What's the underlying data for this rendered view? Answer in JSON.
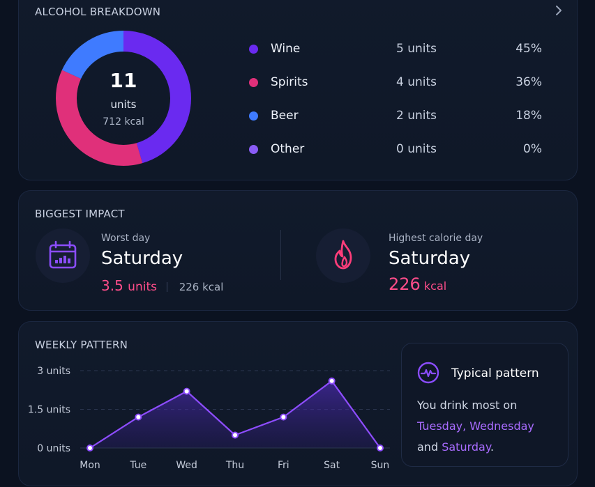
{
  "breakdown": {
    "title": "ALCOHOL BREAKDOWN",
    "chevron_icon": "chevron-right-icon",
    "total_units": "11",
    "units_label": "units",
    "kcal": "712 kcal",
    "items": [
      {
        "name": "Wine",
        "units": "5 units",
        "pct": "45%",
        "color": "#6a2af0",
        "value": 5
      },
      {
        "name": "Spirits",
        "units": "4 units",
        "pct": "36%",
        "color": "#e0307a",
        "value": 4
      },
      {
        "name": "Beer",
        "units": "2 units",
        "pct": "18%",
        "color": "#3f7bff",
        "value": 2
      },
      {
        "name": "Other",
        "units": "0 units",
        "pct": "0%",
        "color": "#8a5cf6",
        "value": 0
      }
    ]
  },
  "impact": {
    "title": "BIGGEST IMPACT",
    "worst": {
      "label": "Worst day",
      "day": "Saturday",
      "units_value": "3.5",
      "units_label": "units",
      "kcal": "226 kcal",
      "icon": "calendar-chart-icon",
      "icon_color": "#8b4dff"
    },
    "highest": {
      "label": "Highest calorie day",
      "day": "Saturday",
      "kcal_value": "226",
      "kcal_label": "kcal",
      "icon": "flame-icon",
      "icon_color": "#ff3d7a"
    }
  },
  "weekly": {
    "title": "WEEKLY PATTERN",
    "typical": {
      "icon": "pulse-icon",
      "title": "Typical pattern",
      "text_prefix": "You drink most on",
      "highlight_days": "Tuesday, Wednesday",
      "connector": "and",
      "highlight_last": "Saturday",
      "period": "."
    }
  },
  "chart_data": {
    "type": "area",
    "categories": [
      "Mon",
      "Tue",
      "Wed",
      "Thu",
      "Fri",
      "Sat",
      "Sun"
    ],
    "values": [
      0,
      1.2,
      2.2,
      0.5,
      1.2,
      2.6,
      0
    ],
    "y_ticks": [
      {
        "value": 0,
        "label": "0 units"
      },
      {
        "value": 1.5,
        "label": "1.5 units"
      },
      {
        "value": 3,
        "label": "3 units"
      }
    ],
    "ylim": [
      0,
      3
    ],
    "grid": true,
    "line_color": "#8e4dff"
  }
}
